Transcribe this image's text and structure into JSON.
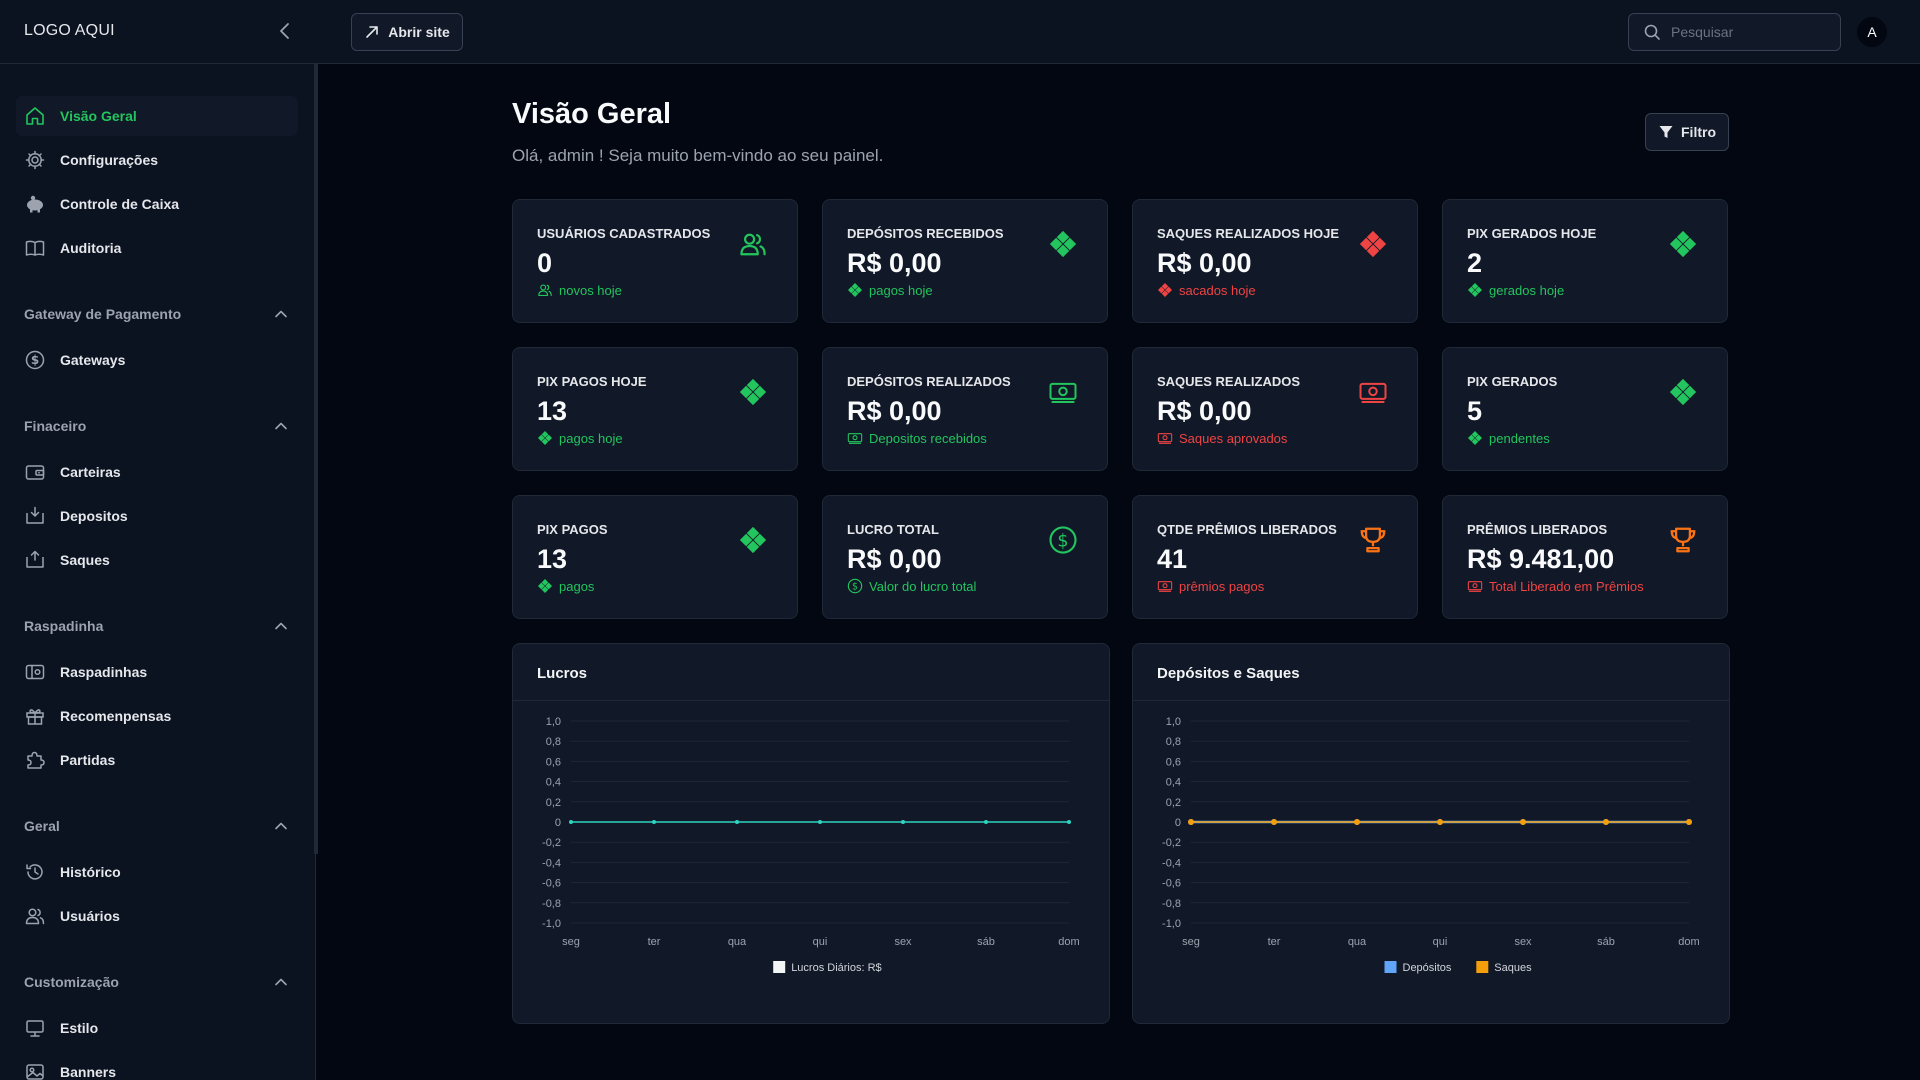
{
  "topbar": {
    "logo": "LOGO AQUI",
    "open_site_label": "Abrir site",
    "search_placeholder": "Pesquisar",
    "avatar_initial": "A"
  },
  "sidebar": {
    "main": [
      {
        "label": "Visão Geral",
        "icon": "home-icon",
        "active": true
      },
      {
        "label": "Configurações",
        "icon": "gear-icon"
      },
      {
        "label": "Controle de Caixa",
        "icon": "piggy-bank-icon"
      },
      {
        "label": "Auditoria",
        "icon": "book-icon"
      }
    ],
    "sections": [
      {
        "title": "Gateway de Pagamento",
        "items": [
          {
            "label": "Gateways",
            "icon": "dollar-circle-icon"
          }
        ]
      },
      {
        "title": "Finaceiro",
        "items": [
          {
            "label": "Carteiras",
            "icon": "wallet-icon"
          },
          {
            "label": "Depositos",
            "icon": "deposit-icon"
          },
          {
            "label": "Saques",
            "icon": "withdraw-icon"
          }
        ]
      },
      {
        "title": "Raspadinha",
        "items": [
          {
            "label": "Raspadinhas",
            "icon": "ticket-icon"
          },
          {
            "label": "Recomenpensas",
            "icon": "gift-icon"
          },
          {
            "label": "Partidas",
            "icon": "puzzle-icon"
          }
        ]
      },
      {
        "title": "Geral",
        "items": [
          {
            "label": "Histórico",
            "icon": "history-icon"
          },
          {
            "label": "Usuários",
            "icon": "users-icon"
          }
        ]
      },
      {
        "title": "Customização",
        "items": [
          {
            "label": "Estilo",
            "icon": "monitor-icon"
          },
          {
            "label": "Banners",
            "icon": "image-icon"
          }
        ]
      }
    ]
  },
  "main": {
    "title": "Visão Geral",
    "subtitle": "Olá, admin ! Seja muito bem-vindo ao seu painel.",
    "filter_label": "Filtro"
  },
  "cards": [
    {
      "title": "USUÁRIOS CADASTRADOS",
      "value": "0",
      "sub": "novos hoje",
      "icon": "users-icon",
      "color": "#22c55e",
      "sub_icon": "users-icon"
    },
    {
      "title": "DEPÓSITOS RECEBIDOS",
      "value": "R$ 0,00",
      "sub": "pagos hoje",
      "icon": "pix-icon",
      "color": "#22c55e",
      "sub_icon": "pix-icon"
    },
    {
      "title": "SAQUES REALIZADOS HOJE",
      "value": "R$ 0,00",
      "sub": "sacados hoje",
      "icon": "pix-icon",
      "color": "#ef4444",
      "sub_icon": "pix-icon"
    },
    {
      "title": "PIX GERADOS HOJE",
      "value": "2",
      "sub": "gerados hoje",
      "icon": "pix-icon",
      "color": "#22c55e",
      "sub_icon": "pix-icon"
    },
    {
      "title": "PIX PAGOS HOJE",
      "value": "13",
      "sub": "pagos hoje",
      "icon": "pix-icon",
      "color": "#22c55e",
      "sub_icon": "pix-icon"
    },
    {
      "title": "DEPÓSITOS REALIZADOS",
      "value": "R$ 0,00",
      "sub": "Depositos recebidos",
      "icon": "cash-icon",
      "color": "#22c55e",
      "sub_icon": "cash-icon"
    },
    {
      "title": "SAQUES REALIZADOS",
      "value": "R$ 0,00",
      "sub": "Saques aprovados",
      "icon": "cash-icon",
      "color": "#ef4444",
      "sub_icon": "cash-icon"
    },
    {
      "title": "PIX GERADOS",
      "value": "5",
      "sub": "pendentes",
      "icon": "pix-icon",
      "color": "#22c55e",
      "sub_icon": "pix-icon"
    },
    {
      "title": "PIX PAGOS",
      "value": "13",
      "sub": "pagos",
      "icon": "pix-icon",
      "color": "#22c55e",
      "sub_icon": "pix-icon"
    },
    {
      "title": "LUCRO TOTAL",
      "value": "R$ 0,00",
      "sub": "Valor do lucro total",
      "icon": "dollar-circle-icon",
      "color": "#22c55e",
      "sub_icon": "dollar-circle-icon"
    },
    {
      "title": "QTDE PRÊMIOS LIBERADOS",
      "value": "41",
      "sub": "prêmios pagos",
      "icon": "trophy-icon",
      "color": "#f97316",
      "sub_icon": "cash-icon",
      "sub_color": "#ef4444"
    },
    {
      "title": "PRÊMIOS LIBERADOS",
      "value": "R$ 9.481,00",
      "sub": "Total Liberado em Prêmios",
      "icon": "trophy-icon",
      "color": "#f97316",
      "sub_icon": "cash-icon",
      "sub_color": "#ef4444"
    }
  ],
  "chart_data": [
    {
      "type": "line",
      "title": "Lucros",
      "categories": [
        "seg",
        "ter",
        "qua",
        "qui",
        "sex",
        "sáb",
        "dom"
      ],
      "y_ticks": [
        "1,0",
        "0,8",
        "0,6",
        "0,4",
        "0,2",
        "0",
        "-0,2",
        "-0,4",
        "-0,6",
        "-0,8",
        "-1,0"
      ],
      "ylim": [
        -1,
        1
      ],
      "series": [
        {
          "name": "Lucros Diários: R$",
          "values": [
            0,
            0,
            0,
            0,
            0,
            0,
            0
          ],
          "color": "#2dd4bf",
          "legend_color": "#f3f4f6"
        }
      ],
      "legend": "bottom"
    },
    {
      "type": "line",
      "title": "Depósitos e Saques",
      "categories": [
        "seg",
        "ter",
        "qua",
        "qui",
        "sex",
        "sáb",
        "dom"
      ],
      "y_ticks": [
        "1,0",
        "0,8",
        "0,6",
        "0,4",
        "0,2",
        "0",
        "-0,2",
        "-0,4",
        "-0,6",
        "-0,8",
        "-1,0"
      ],
      "ylim": [
        -1,
        1
      ],
      "series": [
        {
          "name": "Depósitos",
          "values": [
            0,
            0,
            0,
            0,
            0,
            0,
            0
          ],
          "color": "#60a5fa",
          "legend_color": "#60a5fa"
        },
        {
          "name": "Saques",
          "values": [
            0,
            0,
            0,
            0,
            0,
            0,
            0
          ],
          "color": "#f59e0b",
          "legend_color": "#f59e0b"
        }
      ],
      "legend": "bottom"
    }
  ]
}
